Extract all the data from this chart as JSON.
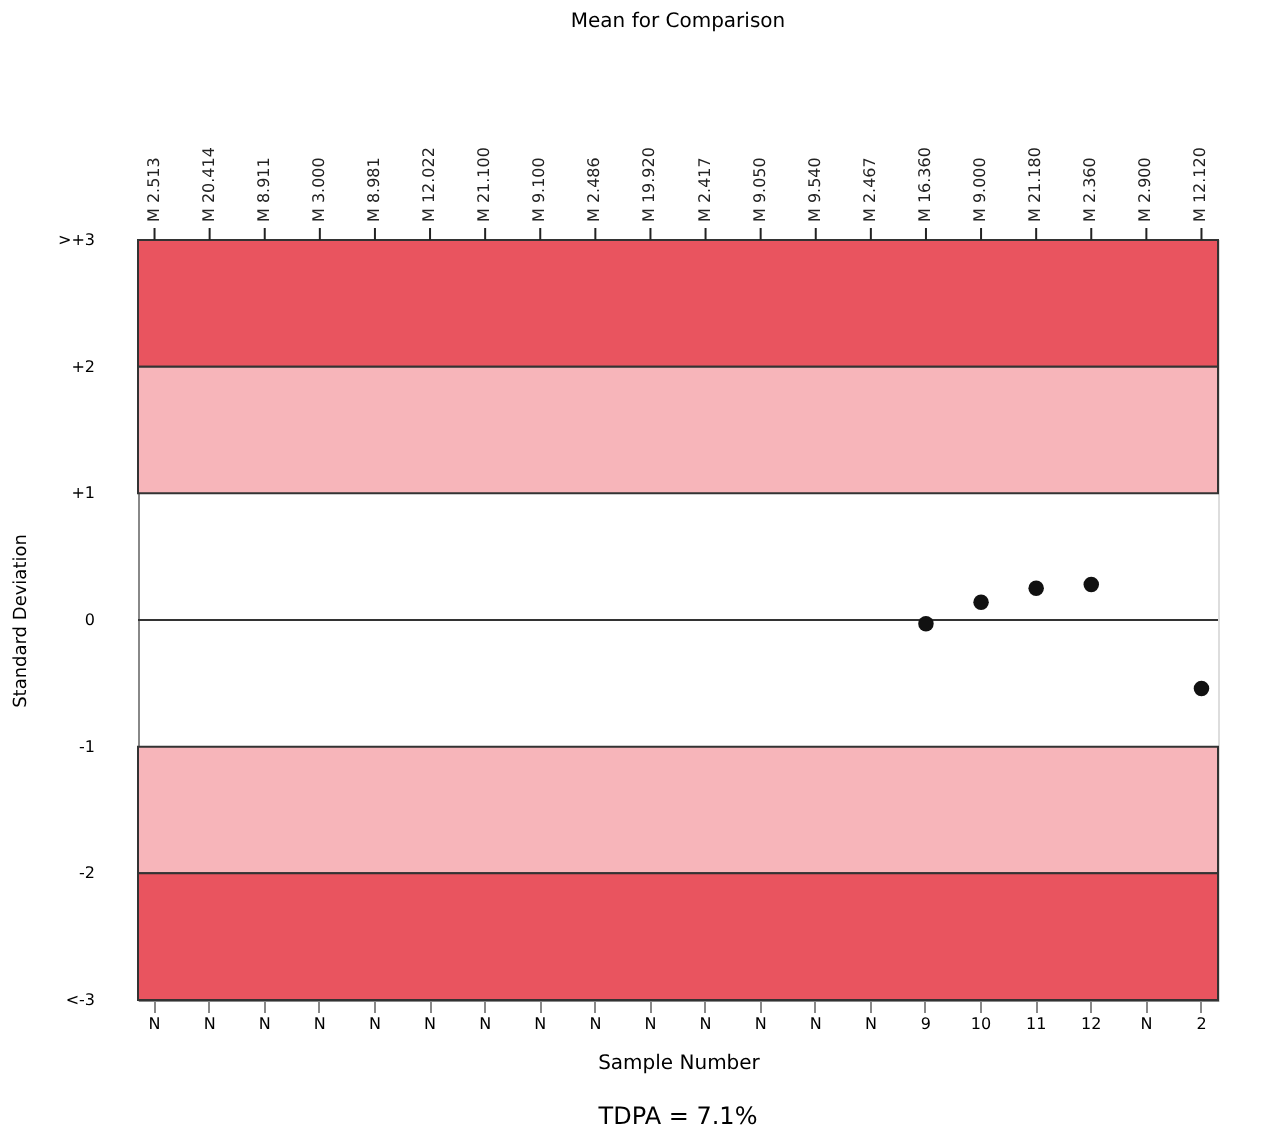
{
  "chart_data": {
    "type": "scatter",
    "title": "Mean for Comparison",
    "xlabel": "Sample Number",
    "ylabel": "Standard Deviation",
    "categories": [
      "N",
      "N",
      "N",
      "N",
      "N",
      "N",
      "N",
      "N",
      "N",
      "N",
      "N",
      "N",
      "N",
      "N",
      "9",
      "10",
      "11",
      "12",
      "N",
      "2"
    ],
    "series": [
      {
        "color": "#111111",
        "values": [
          null,
          null,
          null,
          null,
          null,
          null,
          null,
          null,
          null,
          null,
          null,
          null,
          null,
          null,
          -0.03,
          0.14,
          0.25,
          0.28,
          null,
          -0.54
        ]
      }
    ],
    "marker": "circle",
    "ylim": [
      -3,
      3
    ],
    "yticks": [
      {
        "value": 3,
        "label": ">+3"
      },
      {
        "value": 2,
        "label": "+2"
      },
      {
        "value": 1,
        "label": "+1"
      },
      0,
      -1,
      -2,
      {
        "value": -3,
        "label": "<-3"
      }
    ],
    "bands": [
      {
        "axis": "y",
        "from": 2,
        "to": 3,
        "color": "#e9545f"
      },
      {
        "axis": "y",
        "from": 1,
        "to": 2,
        "color": "#f7b5ba"
      },
      {
        "axis": "y",
        "from": -2,
        "to": -1,
        "color": "#f7b5ba"
      },
      {
        "axis": "y",
        "from": -3,
        "to": -2,
        "color": "#e9545f"
      }
    ],
    "ref_lines": [
      {
        "axis": "y",
        "value": 0,
        "color": "#333333"
      }
    ],
    "annotations": [
      "M 2.513",
      "M 20.414",
      "M 8.911",
      "M 3.000",
      "M 8.981",
      "M 12.022",
      "M 21.100",
      "M 9.100",
      "M 2.486",
      "M 19.920",
      "M 2.417",
      "M 9.050",
      "M 9.540",
      "M 2.467",
      "M 16.360",
      "M 9.000",
      "M 21.180",
      "M 2.360",
      "M 2.900",
      "M 12.120",
      "TDPA = 7.1%"
    ],
    "grid": false
  }
}
